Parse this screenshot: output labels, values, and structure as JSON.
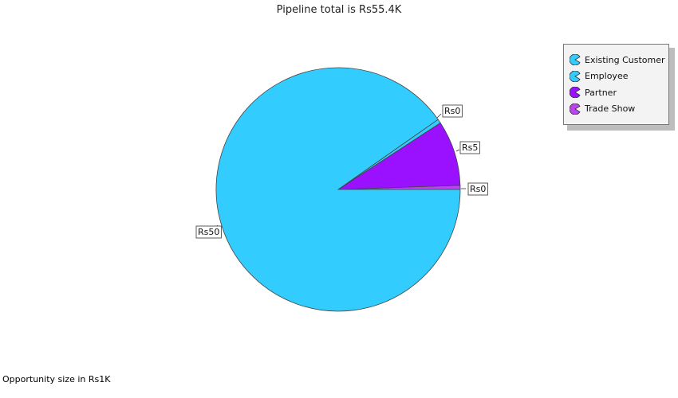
{
  "chart_data": {
    "type": "pie",
    "title": "Pipeline total is Rs55.4K",
    "footnote": "Opportunity size in Rs1K",
    "legend_position": "top-right",
    "slices": [
      {
        "name": "Existing Customer",
        "value": 0.3,
        "label": "Rs0",
        "color": "#33ccff"
      },
      {
        "name": "Employee",
        "value": 50.0,
        "label": "Rs50",
        "color": "#33ccff"
      },
      {
        "name": "Partner",
        "value": 4.8,
        "label": "Rs5",
        "color": "#9911ff"
      },
      {
        "name": "Trade Show",
        "value": 0.3,
        "label": "Rs0",
        "color": "#bb44ee"
      }
    ]
  }
}
